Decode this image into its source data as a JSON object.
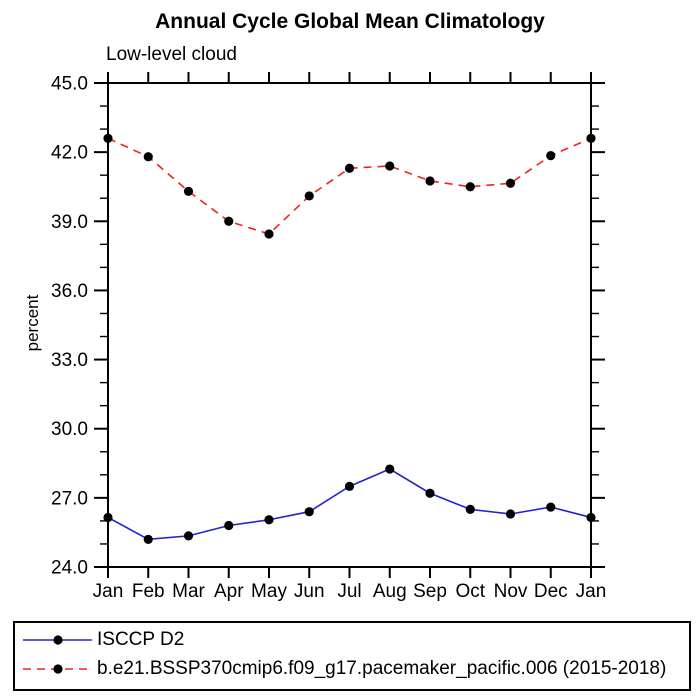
{
  "page": {
    "background": "#ffffff"
  },
  "chart_data": {
    "type": "line",
    "title": "Annual Cycle Global Mean Climatology",
    "subtitle": "Low-level cloud",
    "ylabel": "percent",
    "xlabel": "",
    "x_tick_labels": [
      "Jan",
      "Feb",
      "Mar",
      "Apr",
      "May",
      "Jun",
      "Jul",
      "Aug",
      "Sep",
      "Oct",
      "Nov",
      "Dec",
      "Jan"
    ],
    "ylim": [
      24.0,
      45.0
    ],
    "y_major_ticks": [
      24.0,
      27.0,
      30.0,
      33.0,
      36.0,
      39.0,
      42.0,
      45.0
    ],
    "y_tick_labels": [
      "24.0",
      "27.0",
      "30.0",
      "33.0",
      "36.0",
      "39.0",
      "42.0",
      "45.0"
    ],
    "y_minor_step": 1.0,
    "grid": false,
    "legend_position": "bottom-left-box",
    "axis_color": "#000000",
    "series": [
      {
        "name": "ISCCP D2",
        "color": "#2222d3",
        "style": "solid",
        "marker": "circle",
        "marker_color": "#000000",
        "values": [
          26.15,
          25.2,
          25.35,
          25.8,
          26.05,
          26.4,
          27.5,
          28.25,
          27.2,
          26.5,
          26.3,
          26.6,
          26.15
        ]
      },
      {
        "name": "b.e21.BSSP370cmip6.f09_g17.pacemaker_pacific.006 (2015-2018)",
        "color": "#f02418",
        "style": "dashed",
        "marker": "circle",
        "marker_color": "#000000",
        "values": [
          42.6,
          41.8,
          40.3,
          39.0,
          38.45,
          40.1,
          41.3,
          41.4,
          40.75,
          40.5,
          40.65,
          41.85,
          42.6
        ]
      }
    ]
  }
}
